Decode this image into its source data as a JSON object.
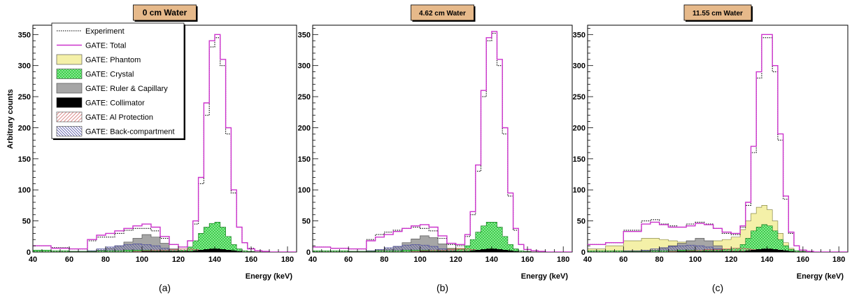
{
  "figure": {
    "ylabel": "Arbitrary counts",
    "xlabel": "Energy (keV)",
    "legend": [
      {
        "label": "Experiment",
        "kind": "dotted",
        "color": "#000000"
      },
      {
        "label": "GATE: Total",
        "kind": "line",
        "color": "#cc33cc"
      },
      {
        "label": "GATE: Phantom",
        "kind": "fill",
        "color": "#f4f0a8"
      },
      {
        "label": "GATE: Crystal",
        "kind": "fill-dotted",
        "color": "#3bd14a"
      },
      {
        "label": "GATE: Ruler & Capillary",
        "kind": "fill",
        "color": "#a6a6a6"
      },
      {
        "label": "GATE: Collimator",
        "kind": "fill",
        "color": "#000000"
      },
      {
        "label": "GATE: Al Protection",
        "kind": "hatch",
        "color": "#d98080"
      },
      {
        "label": "GATE: Back-compartment",
        "kind": "hatch",
        "color": "#5a5aa8"
      }
    ]
  },
  "chart_data": [
    {
      "type": "line",
      "title": "0 cm Water",
      "caption": "(a)",
      "xlabel": "Energy (keV)",
      "ylabel": "Arbitrary counts",
      "xlim": [
        40,
        185
      ],
      "ylim": [
        0,
        365
      ],
      "xticks": [
        40,
        60,
        80,
        100,
        120,
        140,
        160,
        180
      ],
      "yticks": [
        0,
        50,
        100,
        150,
        200,
        250,
        300,
        350
      ],
      "legend_position": "top-left",
      "x": [
        40,
        50,
        60,
        70,
        75,
        80,
        85,
        90,
        95,
        100,
        105,
        110,
        115,
        120,
        125,
        128,
        131,
        134,
        137,
        140,
        143,
        146,
        149,
        152,
        155,
        158,
        162,
        166,
        170,
        175,
        180,
        185
      ],
      "series": [
        {
          "name": "Experiment",
          "values": [
            10,
            7,
            5,
            18,
            24,
            24,
            30,
            35,
            38,
            38,
            34,
            22,
            12,
            8,
            18,
            45,
            110,
            220,
            330,
            345,
            300,
            190,
            95,
            40,
            15,
            6,
            2,
            1,
            0,
            0,
            0,
            0
          ]
        },
        {
          "name": "GATE: Total",
          "values": [
            10,
            6,
            5,
            20,
            27,
            30,
            34,
            38,
            42,
            45,
            40,
            25,
            12,
            8,
            18,
            50,
            120,
            240,
            340,
            350,
            310,
            200,
            100,
            40,
            15,
            5,
            2,
            1,
            0,
            0,
            0,
            0
          ]
        },
        {
          "name": "GATE: Phantom",
          "values": [
            0,
            0,
            0,
            0,
            0,
            0,
            0,
            0,
            0,
            0,
            0,
            0,
            0,
            0,
            0,
            0,
            0,
            0,
            0,
            0,
            0,
            0,
            0,
            0,
            0,
            0,
            0,
            0,
            0,
            0,
            0,
            0
          ]
        },
        {
          "name": "GATE: Crystal",
          "values": [
            3,
            2,
            1,
            1,
            2,
            2,
            2,
            3,
            3,
            3,
            2,
            2,
            2,
            3,
            8,
            18,
            30,
            40,
            46,
            48,
            40,
            25,
            12,
            5,
            2,
            1,
            0,
            0,
            0,
            0,
            0,
            0
          ]
        },
        {
          "name": "GATE: Ruler & Capillary",
          "values": [
            0,
            0,
            0,
            1,
            3,
            6,
            10,
            16,
            22,
            28,
            24,
            14,
            5,
            2,
            1,
            0,
            0,
            0,
            0,
            0,
            0,
            0,
            0,
            0,
            0,
            0,
            0,
            0,
            0,
            0,
            0,
            0
          ]
        },
        {
          "name": "GATE: Collimator",
          "values": [
            0,
            0,
            0,
            0,
            0,
            0,
            0,
            0,
            0,
            1,
            1,
            1,
            1,
            1,
            1,
            2,
            3,
            4,
            5,
            5,
            4,
            3,
            2,
            1,
            0,
            0,
            0,
            0,
            0,
            0,
            0,
            0
          ]
        },
        {
          "name": "GATE: Al Protection",
          "values": [
            0,
            0,
            0,
            0,
            0,
            0,
            0,
            0,
            1,
            2,
            3,
            3,
            4,
            5,
            5,
            4,
            3,
            2,
            1,
            1,
            1,
            0,
            0,
            0,
            0,
            0,
            0,
            0,
            0,
            0,
            0,
            0
          ]
        },
        {
          "name": "GATE: Back-compartment",
          "values": [
            1,
            1,
            1,
            2,
            5,
            8,
            10,
            12,
            13,
            12,
            10,
            6,
            2,
            1,
            0,
            0,
            0,
            0,
            0,
            0,
            0,
            0,
            0,
            0,
            0,
            0,
            0,
            0,
            0,
            0,
            0,
            0
          ]
        }
      ]
    },
    {
      "type": "line",
      "title": "4.62 cm Water",
      "caption": "(b)",
      "xlabel": "Energy (keV)",
      "ylabel": "",
      "xlim": [
        40,
        185
      ],
      "ylim": [
        0,
        365
      ],
      "xticks": [
        40,
        60,
        80,
        100,
        120,
        140,
        160,
        180
      ],
      "yticks": [
        0,
        50,
        100,
        150,
        200,
        250,
        300,
        350
      ],
      "x": [
        40,
        50,
        60,
        70,
        75,
        80,
        85,
        90,
        95,
        100,
        105,
        110,
        115,
        120,
        125,
        128,
        131,
        134,
        137,
        140,
        143,
        146,
        149,
        152,
        155,
        158,
        162,
        166,
        170,
        175,
        180,
        185
      ],
      "series": [
        {
          "name": "Experiment",
          "values": [
            8,
            6,
            5,
            20,
            28,
            32,
            35,
            38,
            40,
            38,
            34,
            22,
            12,
            10,
            25,
            60,
            130,
            250,
            340,
            352,
            300,
            190,
            90,
            35,
            12,
            4,
            2,
            1,
            0,
            0,
            0,
            0
          ]
        },
        {
          "name": "GATE: Total",
          "values": [
            8,
            6,
            5,
            18,
            24,
            28,
            33,
            38,
            42,
            44,
            40,
            26,
            14,
            12,
            28,
            65,
            140,
            260,
            345,
            355,
            310,
            200,
            95,
            38,
            12,
            4,
            2,
            1,
            0,
            0,
            0,
            0
          ]
        },
        {
          "name": "GATE: Phantom",
          "values": [
            0,
            0,
            1,
            2,
            3,
            3,
            4,
            5,
            6,
            6,
            6,
            6,
            6,
            6,
            8,
            10,
            12,
            14,
            14,
            12,
            8,
            5,
            2,
            1,
            0,
            0,
            0,
            0,
            0,
            0,
            0,
            0
          ]
        },
        {
          "name": "GATE: Crystal",
          "values": [
            2,
            2,
            1,
            1,
            2,
            2,
            2,
            3,
            3,
            3,
            3,
            2,
            2,
            4,
            10,
            20,
            32,
            42,
            48,
            48,
            40,
            25,
            12,
            5,
            2,
            1,
            0,
            0,
            0,
            0,
            0,
            0
          ]
        },
        {
          "name": "GATE: Ruler & Capillary",
          "values": [
            0,
            0,
            0,
            1,
            2,
            5,
            9,
            15,
            21,
            26,
            23,
            13,
            5,
            2,
            1,
            0,
            0,
            0,
            0,
            0,
            0,
            0,
            0,
            0,
            0,
            0,
            0,
            0,
            0,
            0,
            0,
            0
          ]
        },
        {
          "name": "GATE: Collimator",
          "values": [
            0,
            0,
            0,
            0,
            0,
            0,
            0,
            0,
            0,
            1,
            1,
            1,
            1,
            1,
            1,
            2,
            3,
            4,
            5,
            5,
            4,
            3,
            2,
            1,
            0,
            0,
            0,
            0,
            0,
            0,
            0,
            0
          ]
        },
        {
          "name": "GATE: Al Protection",
          "values": [
            0,
            0,
            0,
            0,
            0,
            0,
            0,
            0,
            1,
            2,
            3,
            3,
            4,
            5,
            5,
            4,
            3,
            2,
            1,
            1,
            1,
            0,
            0,
            0,
            0,
            0,
            0,
            0,
            0,
            0,
            0,
            0
          ]
        },
        {
          "name": "GATE: Back-compartment",
          "values": [
            1,
            1,
            1,
            2,
            4,
            7,
            9,
            11,
            12,
            11,
            9,
            5,
            2,
            1,
            0,
            0,
            0,
            0,
            0,
            0,
            0,
            0,
            0,
            0,
            0,
            0,
            0,
            0,
            0,
            0,
            0,
            0
          ]
        }
      ]
    },
    {
      "type": "line",
      "title": "11.55 cm Water",
      "caption": "(c)",
      "xlabel": "Energy (keV)",
      "ylabel": "",
      "xlim": [
        40,
        185
      ],
      "ylim": [
        0,
        365
      ],
      "xticks": [
        40,
        60,
        80,
        100,
        120,
        140,
        160,
        180
      ],
      "yticks": [
        0,
        50,
        100,
        150,
        200,
        250,
        300,
        350
      ],
      "x": [
        40,
        50,
        60,
        70,
        75,
        80,
        85,
        90,
        95,
        100,
        105,
        110,
        115,
        120,
        125,
        128,
        131,
        134,
        137,
        140,
        143,
        146,
        149,
        152,
        155,
        158,
        162,
        166,
        170,
        175,
        180,
        185
      ],
      "series": [
        {
          "name": "Experiment",
          "values": [
            12,
            15,
            35,
            50,
            52,
            45,
            42,
            40,
            45,
            48,
            45,
            38,
            30,
            28,
            40,
            75,
            160,
            280,
            345,
            345,
            290,
            180,
            85,
            30,
            10,
            3,
            1,
            0,
            0,
            0,
            0,
            0
          ]
        },
        {
          "name": "GATE: Total",
          "values": [
            12,
            15,
            33,
            45,
            48,
            44,
            40,
            40,
            42,
            46,
            44,
            38,
            32,
            30,
            42,
            80,
            170,
            290,
            350,
            350,
            300,
            190,
            90,
            32,
            10,
            3,
            1,
            0,
            0,
            0,
            0,
            0
          ]
        },
        {
          "name": "GATE: Phantom",
          "values": [
            5,
            10,
            18,
            22,
            22,
            20,
            18,
            16,
            16,
            16,
            17,
            18,
            20,
            24,
            36,
            50,
            62,
            72,
            75,
            68,
            50,
            30,
            15,
            6,
            2,
            1,
            0,
            0,
            0,
            0,
            0,
            0
          ]
        },
        {
          "name": "GATE: Crystal",
          "values": [
            2,
            2,
            1,
            1,
            2,
            2,
            2,
            3,
            3,
            3,
            3,
            3,
            4,
            6,
            12,
            22,
            34,
            40,
            44,
            42,
            34,
            20,
            10,
            4,
            2,
            1,
            0,
            0,
            0,
            0,
            0,
            0
          ]
        },
        {
          "name": "GATE: Ruler & Capillary",
          "values": [
            0,
            0,
            1,
            2,
            3,
            6,
            10,
            14,
            18,
            22,
            18,
            10,
            4,
            2,
            1,
            0,
            0,
            0,
            0,
            0,
            0,
            0,
            0,
            0,
            0,
            0,
            0,
            0,
            0,
            0,
            0,
            0
          ]
        },
        {
          "name": "GATE: Collimator",
          "values": [
            0,
            0,
            0,
            0,
            0,
            0,
            0,
            1,
            1,
            1,
            1,
            1,
            1,
            1,
            1,
            2,
            3,
            4,
            5,
            5,
            4,
            3,
            2,
            1,
            0,
            0,
            0,
            0,
            0,
            0,
            0,
            0
          ]
        },
        {
          "name": "GATE: Al Protection",
          "values": [
            0,
            0,
            0,
            0,
            0,
            0,
            1,
            1,
            2,
            3,
            4,
            4,
            5,
            6,
            6,
            5,
            4,
            3,
            2,
            1,
            1,
            0,
            0,
            0,
            0,
            0,
            0,
            0,
            0,
            0,
            0,
            0
          ]
        },
        {
          "name": "GATE: Back-compartment",
          "values": [
            1,
            1,
            2,
            3,
            5,
            7,
            9,
            10,
            11,
            10,
            8,
            5,
            2,
            1,
            0,
            0,
            0,
            0,
            0,
            0,
            0,
            0,
            0,
            0,
            0,
            0,
            0,
            0,
            0,
            0,
            0,
            0
          ]
        }
      ]
    }
  ]
}
